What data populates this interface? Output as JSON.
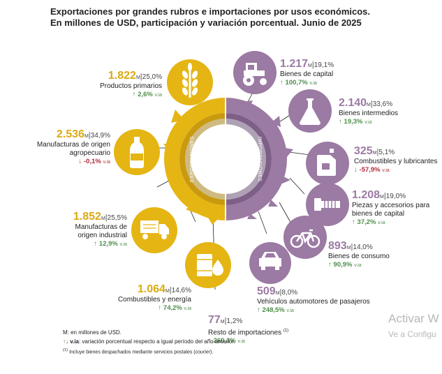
{
  "title": {
    "line1": "Exportaciones por grandes rubros e importaciones por usos económicos.",
    "line2": "En millones de USD, participación y variación porcentual. Junio de 2025"
  },
  "ring": {
    "left_label": "EXPORTACIONES",
    "right_label": "IMPORTACIONES"
  },
  "colors": {
    "exports": "#e5b513",
    "imports": "#9b7aa3",
    "up": "#4f8d4a",
    "down": "#b32a3a"
  },
  "unit": "M",
  "vi_suffix": "v.ia",
  "exports": [
    {
      "value": "1.822",
      "share": "25,0%",
      "label": "Productos primarios",
      "var": "2,6%",
      "dir": "up",
      "icon": "wheat-icon"
    },
    {
      "value": "2.536",
      "share": "34,9%",
      "label": "Manufacturas de origen agropecuario",
      "var": "-0,1%",
      "dir": "down",
      "icon": "bottle-icon"
    },
    {
      "value": "1.852",
      "share": "25,5%",
      "label": "Manufacturas de origen industrial",
      "var": "12,9%",
      "dir": "up",
      "icon": "truck-icon"
    },
    {
      "value": "1.064",
      "share": "14,6%",
      "label": "Combustibles y energía",
      "var": "74,2%",
      "dir": "up",
      "icon": "oil-barrel-icon"
    }
  ],
  "imports": [
    {
      "value": "1.217",
      "share": "19,1%",
      "label": "Bienes de capital",
      "var": "100,7%",
      "dir": "up",
      "icon": "tractor-icon"
    },
    {
      "value": "2.140",
      "share": "33,6%",
      "label": "Bienes intermedios",
      "var": "19,3%",
      "dir": "up",
      "icon": "flask-icon"
    },
    {
      "value": "325",
      "share": "5,1%",
      "label": "Combustibles y lubricantes",
      "var": "-57,9%",
      "dir": "down",
      "icon": "jerrycan-icon"
    },
    {
      "value": "1.208",
      "share": "19,0%",
      "label": "Piezas y accesorios para bienes de capital",
      "var": "37,2%",
      "dir": "up",
      "icon": "bolt-icon"
    },
    {
      "value": "893",
      "share": "14,0%",
      "label": "Bienes de consumo",
      "var": "90,9%",
      "dir": "up",
      "icon": "bicycle-icon"
    },
    {
      "value": "509",
      "share": "8,0%",
      "label": "Vehículos automotores de pasajeros",
      "var": "248,5%",
      "dir": "up",
      "icon": "car-icon"
    },
    {
      "value": "77",
      "share": "1,2%",
      "label": "Resto de importaciones",
      "label_note": "(1)",
      "var": "260,3%",
      "dir": "up",
      "icon": ""
    }
  ],
  "notes": {
    "n1": "M: en millones de USD.",
    "n2_bold": "v.ia",
    "n2": ": variación porcentual respecto a igual período del año anterior.",
    "n3_mark": "(1)",
    "n3": " Incluye bienes despachados mediante servicios postales (",
    "n3_it": "courier",
    "n3_end": ")."
  },
  "watermark": {
    "line1": "Activar W",
    "line2": "Ve a Configu"
  }
}
